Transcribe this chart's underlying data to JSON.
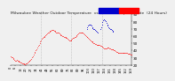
{
  "title": "Milwaukee Weather Outdoor Temperature  vs Heat Index  per Minute  (24 Hours)",
  "bg_color": "#f0f0f0",
  "plot_bg": "#f0f0f0",
  "legend_temp_color": "#ff0000",
  "legend_hi_color": "#0000cc",
  "grid_color": "#999999",
  "ymin": 20,
  "ymax": 90,
  "ytick_vals": [
    20,
    30,
    40,
    50,
    60,
    70,
    80,
    90
  ],
  "ytick_labels": [
    "20",
    "30",
    "40",
    "50",
    "60",
    "70",
    "80",
    "90"
  ],
  "temp_color": "#ff0000",
  "hi_color": "#0000cc",
  "temp_data": [
    32,
    31,
    30,
    29,
    28,
    27,
    26,
    26,
    27,
    26,
    25,
    24,
    24,
    23,
    23,
    22,
    22,
    22,
    21,
    21,
    22,
    22,
    23,
    24,
    25,
    26,
    27,
    28,
    30,
    32,
    34,
    36,
    38,
    40,
    42,
    44,
    46,
    48,
    50,
    52,
    54,
    56,
    57,
    58,
    59,
    60,
    61,
    62,
    63,
    64,
    65,
    66,
    67,
    67,
    68,
    68,
    68,
    67,
    67,
    66,
    65,
    65,
    64,
    64,
    63,
    62,
    61,
    61,
    60,
    60,
    59,
    59,
    58,
    57,
    57,
    56,
    55,
    54,
    54,
    54,
    55,
    56,
    57,
    57,
    58,
    59,
    60,
    61,
    62,
    63,
    64,
    64,
    65,
    65,
    65,
    64,
    63,
    62,
    61,
    60,
    59,
    58,
    57,
    56,
    55,
    54,
    53,
    52,
    51,
    50,
    50,
    49,
    49,
    48,
    48,
    47,
    47,
    47,
    46,
    46,
    45,
    45,
    44,
    43,
    43,
    43,
    43,
    44,
    44,
    44,
    43,
    43,
    42,
    42,
    41,
    41,
    40,
    40,
    39,
    38,
    38,
    37,
    37,
    37,
    37,
    37,
    36,
    36,
    36,
    36,
    36,
    36,
    36,
    36,
    35,
    35,
    35,
    35,
    34,
    34
  ],
  "hi_x1": [
    100,
    101,
    102,
    103,
    104,
    105,
    106,
    107,
    108,
    109,
    110,
    111,
    112,
    113,
    114
  ],
  "hi_y1": [
    70,
    72,
    74,
    76,
    76,
    75,
    74,
    72,
    71,
    70,
    69,
    68,
    67,
    66,
    65
  ],
  "hi_x2": [
    118,
    119,
    120,
    121,
    122,
    123,
    124,
    125,
    126,
    127,
    128,
    129,
    130,
    131,
    132,
    133,
    134,
    135
  ],
  "hi_y2": [
    70,
    72,
    75,
    79,
    82,
    83,
    82,
    80,
    78,
    76,
    74,
    72,
    71,
    70,
    69,
    68,
    67,
    66
  ],
  "vline_positions": [
    40,
    80,
    120
  ],
  "title_fontsize": 3.2,
  "tick_fontsize": 3.0,
  "dot_size_temp": 0.25,
  "dot_size_hi": 0.35
}
